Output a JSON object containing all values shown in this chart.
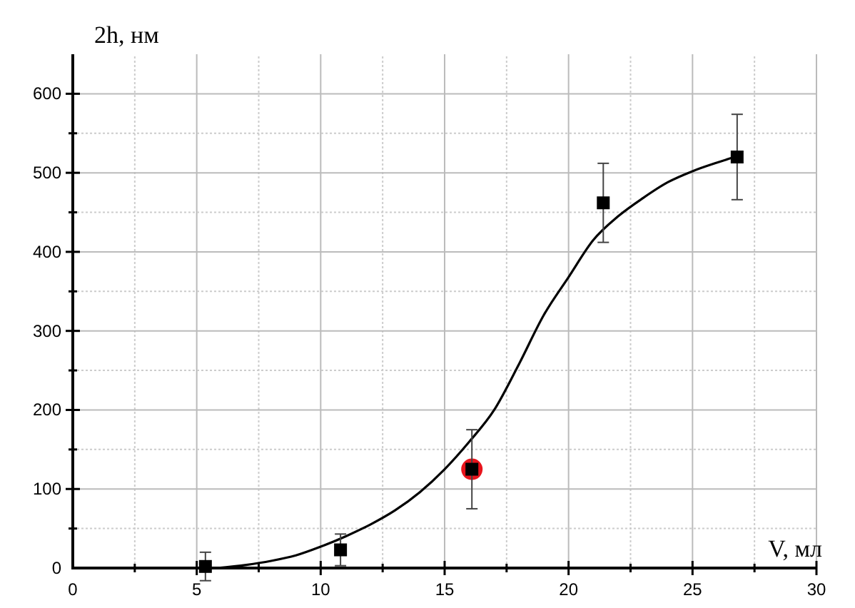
{
  "chart_data": {
    "type": "scatter",
    "xlabel": "V, мл",
    "ylabel": "2h, нм",
    "xlim": [
      0,
      30
    ],
    "ylim": [
      0,
      650
    ],
    "xticks": [
      0,
      {
        "value": 2.5,
        "label": null
      },
      5,
      {
        "value": 7.5,
        "label": null
      },
      10,
      {
        "value": 12.5,
        "label": null
      },
      15,
      {
        "value": 17.5,
        "label": null
      },
      20,
      {
        "value": 22.5,
        "label": null
      },
      25,
      {
        "value": 27.5,
        "label": null
      },
      30
    ],
    "yticks": [
      0,
      {
        "value": 50,
        "label": null
      },
      100,
      {
        "value": 150,
        "label": null
      },
      200,
      {
        "value": 250,
        "label": null
      },
      300,
      {
        "value": 350,
        "label": null
      },
      400,
      {
        "value": 450,
        "label": null
      },
      500,
      {
        "value": 550,
        "label": null
      },
      600
    ],
    "grid": true,
    "series": [
      {
        "type": "line",
        "color": "#000000",
        "marker": "none",
        "line_style": "solid",
        "x": [
          5.8,
          7,
          8,
          9,
          10,
          11,
          12,
          13,
          14,
          15,
          16,
          17,
          18,
          19,
          20,
          21,
          22,
          23,
          24,
          25,
          26,
          26.7
        ],
        "values": [
          0,
          4,
          9,
          16,
          27,
          40,
          55,
          73,
          96,
          125,
          160,
          200,
          258,
          320,
          368,
          415,
          445,
          468,
          488,
          502,
          513,
          520
        ]
      },
      {
        "type": "scatter",
        "color": "#e8141c",
        "marker": "circle",
        "x": [
          16.1
        ],
        "values": [
          125
        ]
      },
      {
        "type": "scatter",
        "color": "#000000",
        "marker": "square",
        "x": [
          5.35,
          10.8,
          16.1,
          21.4,
          26.8
        ],
        "values": [
          2,
          23,
          125,
          462,
          520
        ],
        "errors": [
          18,
          20,
          50,
          50,
          54
        ]
      }
    ]
  }
}
